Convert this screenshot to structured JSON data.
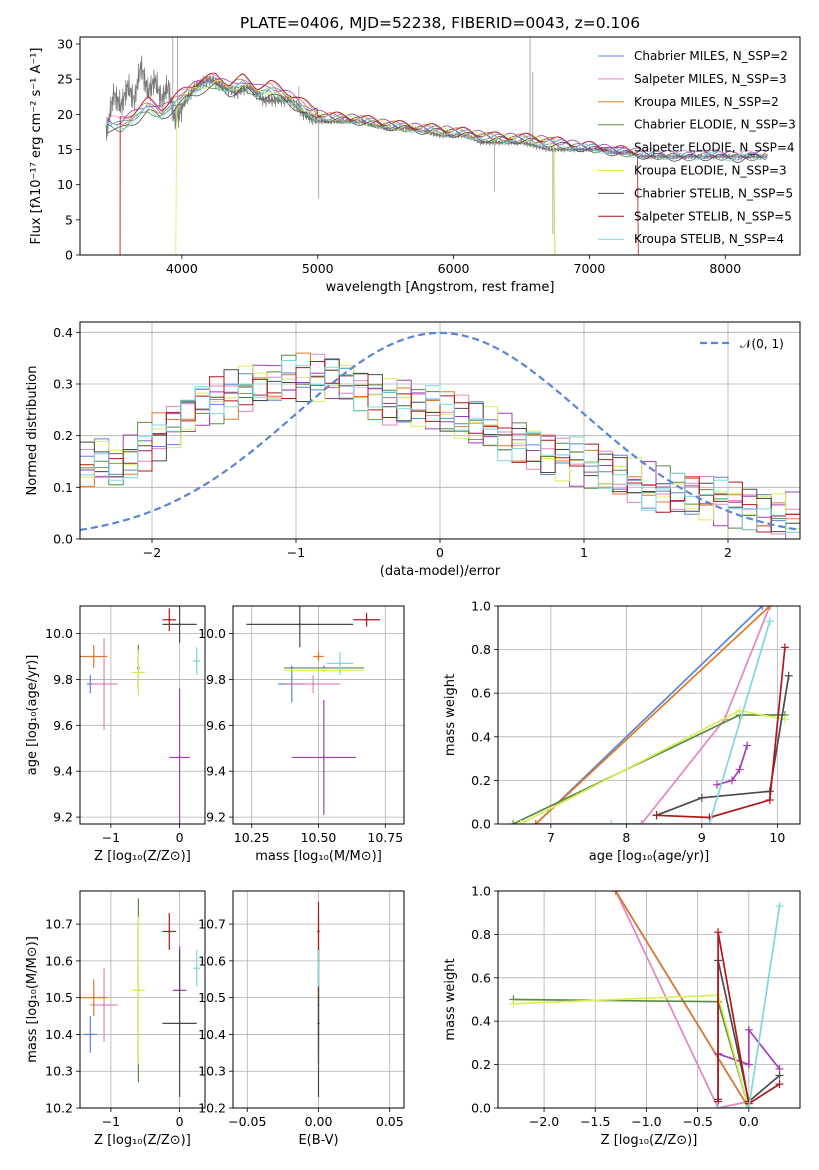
{
  "palette": {
    "chab_miles": "#5b86d6",
    "salp_miles": "#e386c2",
    "krou_miles": "#e07a2a",
    "chab_elodie": "#5a8a45",
    "salp_elodie": "#a23fb2",
    "krou_elodie": "#d7ef59",
    "chab_stelib": "#4a4a4a",
    "salp_stelib": "#b0181c",
    "krou_stelib": "#7fd8de",
    "observed": "#777777",
    "gaussian": "#5b86d6",
    "grid": "#b0b0b0"
  },
  "chart_data": [
    {
      "id": "spectrum",
      "type": "line",
      "title": "PLATE=0406, MJD=52238, FIBERID=0043, z=0.106",
      "xlabel": "wavelength [Angstrom, rest frame]",
      "ylabel": "Flux [fλ10⁻¹⁷ erg cm⁻² s⁻¹ A⁻¹]",
      "xlim": [
        3250,
        8550
      ],
      "ylim": [
        0,
        31
      ],
      "xticks": [
        "4000",
        "5000",
        "6000",
        "7000",
        "8000"
      ],
      "yticks": [
        "0",
        "5",
        "10",
        "15",
        "20",
        "25",
        "30"
      ],
      "grid": false,
      "legend_position": "top-right",
      "legend": [
        "Chabrier MILES, N_SSP=2",
        "Salpeter MILES, N_SSP=3",
        "Kroupa MILES, N_SSP=2",
        "Chabrier ELODIE, N_SSP=3",
        "Salpeter ELODIE, N_SSP=4",
        "Kroupa ELODIE, N_SSP=3",
        "Chabrier STELIB, N_SSP=5",
        "Salpeter STELIB, N_SSP=5",
        "Kroupa STELIB, N_SSP=4"
      ],
      "model_continuum": {
        "x": [
          3450,
          3550,
          3650,
          3750,
          3850,
          3950,
          4050,
          4150,
          4250,
          4350,
          4450,
          4550,
          4650,
          4750,
          4850,
          4950,
          5100,
          5300,
          5500,
          5700,
          5900,
          6100,
          6300,
          6500,
          6700,
          6900,
          7100,
          7300,
          7500,
          7700,
          7900,
          8100,
          8300
        ],
        "y": [
          18.5,
          18.3,
          19.5,
          21.0,
          20.0,
          21.5,
          23.0,
          24.0,
          24.5,
          23.5,
          24.3,
          23.0,
          23.5,
          22.5,
          21.5,
          20.0,
          19.5,
          19.2,
          18.5,
          18.0,
          17.7,
          17.2,
          16.6,
          16.5,
          16.1,
          15.5,
          15.0,
          14.5,
          14.2,
          14.0,
          14.2,
          13.9,
          14.2
        ]
      },
      "model_cutoffs": [
        {
          "series": 7,
          "start": 3545,
          "end": 7360
        },
        {
          "series": 2,
          "start": 3545,
          "end": 6745
        },
        {
          "series": 5,
          "start": 3955,
          "end": 6745
        }
      ],
      "observed": {
        "x": [
          3450,
          3500,
          3550,
          3600,
          3650,
          3700,
          3750,
          3800,
          3850,
          3900,
          3950,
          4000,
          4100,
          4200,
          4300,
          4400,
          4500,
          4600,
          4700,
          4800,
          4900,
          5000,
          5100,
          5200,
          5300,
          5400,
          5500,
          5600,
          5700,
          5800,
          5900,
          6000,
          6100,
          6200,
          6300,
          6400,
          6500,
          6600,
          6700,
          6800,
          6900,
          7000,
          7100,
          7200,
          7300,
          7400,
          7500,
          7600,
          7700,
          7800,
          7900,
          8000,
          8100,
          8200,
          8300
        ],
        "y": [
          18,
          23,
          21,
          24,
          22,
          27,
          23,
          25,
          22,
          24,
          19,
          21,
          24,
          25,
          24,
          23,
          24,
          22,
          22,
          22,
          20,
          19,
          19,
          19,
          19,
          18.5,
          18,
          18,
          18,
          17.5,
          17,
          17,
          17,
          16,
          16,
          16,
          16,
          15.5,
          15,
          15,
          15,
          15,
          15,
          14.5,
          14.5,
          14,
          14,
          14,
          14,
          14,
          14,
          14,
          14,
          14,
          14
        ]
      }
    },
    {
      "id": "residuals",
      "type": "line",
      "xlabel": "(data-model)/error",
      "ylabel": "Normed distribution",
      "xlim": [
        -2.5,
        2.5
      ],
      "ylim": [
        0,
        0.42
      ],
      "xticks": [
        "−2",
        "−1",
        "0",
        "1",
        "2"
      ],
      "yticks": [
        "0.0",
        "0.1",
        "0.2",
        "0.3",
        "0.4"
      ],
      "grid": true,
      "legend_position": "top-right",
      "legend": [
        "𝒩(0, 1)"
      ],
      "reference_curve": {
        "mean": 0,
        "sigma": 1
      },
      "hist_x": [
        -2.5,
        -2.4,
        -2.3,
        -2.2,
        -2.1,
        -2.0,
        -1.9,
        -1.8,
        -1.7,
        -1.6,
        -1.5,
        -1.4,
        -1.3,
        -1.2,
        -1.1,
        -1.0,
        -0.9,
        -0.8,
        -0.7,
        -0.6,
        -0.5,
        -0.4,
        -0.3,
        -0.2,
        -0.1,
        0.0,
        0.1,
        0.2,
        0.3,
        0.4,
        0.5,
        0.6,
        0.7,
        0.8,
        0.9,
        1.0,
        1.1,
        1.2,
        1.3,
        1.4,
        1.5,
        1.6,
        1.7,
        1.8,
        1.9,
        2.0,
        2.1,
        2.2,
        2.3,
        2.4,
        2.5
      ],
      "hist_base": [
        0.14,
        0.15,
        0.14,
        0.16,
        0.18,
        0.2,
        0.22,
        0.24,
        0.26,
        0.27,
        0.28,
        0.29,
        0.3,
        0.3,
        0.31,
        0.31,
        0.31,
        0.31,
        0.3,
        0.29,
        0.28,
        0.27,
        0.27,
        0.26,
        0.25,
        0.24,
        0.23,
        0.22,
        0.21,
        0.2,
        0.19,
        0.18,
        0.17,
        0.16,
        0.15,
        0.14,
        0.13,
        0.12,
        0.11,
        0.1,
        0.095,
        0.09,
        0.085,
        0.08,
        0.075,
        0.07,
        0.06,
        0.055,
        0.05,
        0.045
      ]
    },
    {
      "id": "age_vs_z",
      "type": "scatter",
      "xlabel": "Z [log₁₀(Z/Z⊙)]",
      "ylabel": "age  [log₁₀(age/yr)]",
      "xlim": [
        -1.45,
        0.37
      ],
      "ylim": [
        9.17,
        10.12
      ],
      "xticks": [
        "−1",
        "0"
      ],
      "yticks": [
        "9.2",
        "9.4",
        "9.6",
        "9.8",
        "10.0"
      ],
      "grid": true,
      "points": [
        {
          "s": 0,
          "x": -1.3,
          "y": 9.78,
          "xe": 0.05,
          "ye": 0.04
        },
        {
          "s": 1,
          "x": -1.1,
          "y": 9.78,
          "xe": 0.2,
          "ye": 0.2
        },
        {
          "s": 2,
          "x": -1.25,
          "y": 9.9,
          "xe": 0.2,
          "ye": 0.05
        },
        {
          "s": 3,
          "x": -0.6,
          "y": 9.85,
          "xe": 0.02,
          "ye": 0.1
        },
        {
          "s": 4,
          "x": 0.0,
          "y": 9.46,
          "xe": 0.15,
          "ye": 0.3
        },
        {
          "s": 5,
          "x": -0.6,
          "y": 9.83,
          "xe": 0.1,
          "ye": 0.1
        },
        {
          "s": 6,
          "x": 0.0,
          "y": 10.04,
          "xe": 0.25,
          "ye": 0.08
        },
        {
          "s": 7,
          "x": -0.15,
          "y": 10.06,
          "xe": 0.1,
          "ye": 0.05
        },
        {
          "s": 8,
          "x": 0.25,
          "y": 9.88,
          "xe": 0.05,
          "ye": 0.06
        }
      ]
    },
    {
      "id": "age_vs_mass",
      "type": "scatter",
      "xlabel": "mass [log₁₀(M/M⊙)]",
      "ylabel": "",
      "xlim": [
        10.18,
        10.82
      ],
      "ylim": [
        9.17,
        10.12
      ],
      "xticks": [
        "10.25",
        "10.50",
        "10.75"
      ],
      "yticks": [
        "9.2",
        "9.4",
        "9.6",
        "9.8",
        "10.0"
      ],
      "grid": true,
      "points": [
        {
          "s": 0,
          "x": 10.4,
          "y": 9.78,
          "xe": 0.05,
          "ye": 0.08
        },
        {
          "s": 1,
          "x": 10.48,
          "y": 9.78,
          "xe": 0.1,
          "ye": 0.04
        },
        {
          "s": 2,
          "x": 10.5,
          "y": 9.9,
          "xe": 0.02,
          "ye": 0.02
        },
        {
          "s": 3,
          "x": 10.52,
          "y": 9.85,
          "xe": 0.15,
          "ye": 0.01
        },
        {
          "s": 4,
          "x": 10.52,
          "y": 9.46,
          "xe": 0.12,
          "ye": 0.25
        },
        {
          "s": 5,
          "x": 10.52,
          "y": 9.84,
          "xe": 0.15,
          "ye": 0.01
        },
        {
          "s": 6,
          "x": 10.43,
          "y": 10.04,
          "xe": 0.2,
          "ye": 0.1
        },
        {
          "s": 7,
          "x": 10.68,
          "y": 10.06,
          "xe": 0.05,
          "ye": 0.03
        },
        {
          "s": 8,
          "x": 10.58,
          "y": 9.87,
          "xe": 0.05,
          "ye": 0.05
        }
      ]
    },
    {
      "id": "mass_weight_vs_age",
      "type": "line",
      "xlabel": "age  [log₁₀(age/yr)]",
      "ylabel": "mass weight",
      "xlim": [
        6.3,
        10.3
      ],
      "ylim": [
        0,
        1
      ],
      "xticks": [
        "7",
        "8",
        "9",
        "10"
      ],
      "yticks": [
        "0.0",
        "0.2",
        "0.4",
        "0.6",
        "0.8",
        "1.0"
      ],
      "grid": true,
      "lines": [
        {
          "s": 0,
          "x": [
            6.8,
            9.8
          ],
          "y": [
            0,
            1.0
          ]
        },
        {
          "s": 1,
          "x": [
            6.8,
            8.2,
            9.3,
            9.9
          ],
          "y": [
            0,
            0.0,
            0.48,
            1.0
          ]
        },
        {
          "s": 2,
          "x": [
            6.8,
            9.9
          ],
          "y": [
            0,
            1.0
          ]
        },
        {
          "s": 3,
          "x": [
            6.5,
            9.5,
            10.1
          ],
          "y": [
            0,
            0.5,
            0.5
          ]
        },
        {
          "s": 4,
          "x": [
            9.2,
            9.4,
            9.5,
            9.6
          ],
          "y": [
            0.18,
            0.2,
            0.25,
            0.36
          ]
        },
        {
          "s": 5,
          "x": [
            6.6,
            9.5,
            10.1
          ],
          "y": [
            0,
            0.52,
            0.48
          ]
        },
        {
          "s": 6,
          "x": [
            8.4,
            9.0,
            9.9,
            10.15
          ],
          "y": [
            0.04,
            0.12,
            0.15,
            0.68
          ]
        },
        {
          "s": 7,
          "x": [
            8.4,
            9.1,
            9.9,
            10.1
          ],
          "y": [
            0.04,
            0.03,
            0.11,
            0.81
          ]
        },
        {
          "s": 8,
          "x": [
            7.8,
            9.1,
            9.9
          ],
          "y": [
            0,
            0.0,
            0.93
          ]
        }
      ]
    },
    {
      "id": "mass_vs_z",
      "type": "scatter",
      "xlabel": "Z [log₁₀(Z/Z⊙)]",
      "ylabel": "mass [log₁₀(M/M⊙)]",
      "xlim": [
        -1.45,
        0.37
      ],
      "ylim": [
        10.2,
        10.79
      ],
      "xticks": [
        "−1",
        "0"
      ],
      "yticks": [
        "10.2",
        "10.3",
        "10.4",
        "10.5",
        "10.6",
        "10.7"
      ],
      "grid": true,
      "points": [
        {
          "s": 0,
          "x": -1.3,
          "y": 10.4,
          "xe": 0.1,
          "ye": 0.05
        },
        {
          "s": 1,
          "x": -1.1,
          "y": 10.48,
          "xe": 0.2,
          "ye": 0.1
        },
        {
          "s": 2,
          "x": -1.25,
          "y": 10.5,
          "xe": 0.2,
          "ye": 0.05
        },
        {
          "s": 3,
          "x": -0.6,
          "y": 10.52,
          "xe": 0.02,
          "ye": 0.25
        },
        {
          "s": 4,
          "x": 0.0,
          "y": 10.52,
          "xe": 0.1,
          "ye": 0.12
        },
        {
          "s": 5,
          "x": -0.6,
          "y": 10.52,
          "xe": 0.1,
          "ye": 0.2
        },
        {
          "s": 6,
          "x": 0.0,
          "y": 10.43,
          "xe": 0.25,
          "ye": 0.2
        },
        {
          "s": 7,
          "x": -0.15,
          "y": 10.68,
          "xe": 0.1,
          "ye": 0.05
        },
        {
          "s": 8,
          "x": 0.25,
          "y": 10.58,
          "xe": 0.05,
          "ye": 0.05
        }
      ]
    },
    {
      "id": "mass_vs_ebv",
      "type": "scatter",
      "xlabel": "E(B-V)",
      "ylabel": "",
      "xlim": [
        -0.06,
        0.06
      ],
      "ylim": [
        10.2,
        10.79
      ],
      "xticks": [
        "−0.05",
        "0.00",
        "0.05"
      ],
      "yticks": [
        "10.2",
        "10.3",
        "10.4",
        "10.5",
        "10.6",
        "10.7"
      ],
      "grid": true,
      "points": [
        {
          "s": 0,
          "x": 0,
          "y": 10.4,
          "xe": 0,
          "ye": 0.05
        },
        {
          "s": 1,
          "x": 0,
          "y": 10.48,
          "xe": 0,
          "ye": 0.05
        },
        {
          "s": 2,
          "x": 0,
          "y": 10.5,
          "xe": 0,
          "ye": 0.02
        },
        {
          "s": 3,
          "x": 0,
          "y": 10.52,
          "xe": 0,
          "ye": 0.2
        },
        {
          "s": 4,
          "x": 0,
          "y": 10.52,
          "xe": 0,
          "ye": 0.12
        },
        {
          "s": 5,
          "x": 0,
          "y": 10.52,
          "xe": 0,
          "ye": 0.2
        },
        {
          "s": 6,
          "x": 0,
          "y": 10.43,
          "xe": 0,
          "ye": 0.2
        },
        {
          "s": 7,
          "x": 0,
          "y": 10.68,
          "xe": 0,
          "ye": 0.08
        },
        {
          "s": 8,
          "x": 0,
          "y": 10.58,
          "xe": 0,
          "ye": 0.05
        }
      ]
    },
    {
      "id": "mass_weight_vs_z",
      "type": "line",
      "xlabel": "Z [log₁₀(Z/Z⊙)]",
      "ylabel": "mass weight",
      "xlim": [
        -2.45,
        0.5
      ],
      "ylim": [
        0,
        1
      ],
      "xticks": [
        "−2.0",
        "−1.5",
        "−1.0",
        "−0.5",
        "0.0"
      ],
      "yticks": [
        "0.0",
        "0.2",
        "0.4",
        "0.6",
        "0.8",
        "1.0"
      ],
      "grid": true,
      "lines": [
        {
          "s": 0,
          "x": [
            -1.3,
            0.0
          ],
          "y": [
            1.0,
            0.0
          ]
        },
        {
          "s": 1,
          "x": [
            -1.3,
            -0.3,
            0.0
          ],
          "y": [
            1.0,
            0.0,
            0.03
          ]
        },
        {
          "s": 2,
          "x": [
            -1.3,
            0.0
          ],
          "y": [
            1.0,
            0.0
          ]
        },
        {
          "s": 3,
          "x": [
            -2.3,
            -0.3,
            0.0
          ],
          "y": [
            0.5,
            0.49,
            0.0
          ]
        },
        {
          "s": 4,
          "x": [
            -0.3,
            0.0,
            0.0,
            0.3
          ],
          "y": [
            0.25,
            0.2,
            0.36,
            0.18
          ]
        },
        {
          "s": 5,
          "x": [
            -2.3,
            -0.3,
            0.0
          ],
          "y": [
            0.48,
            0.52,
            0.0
          ]
        },
        {
          "s": 6,
          "x": [
            -0.3,
            -0.3,
            0.0,
            0.3
          ],
          "y": [
            0.04,
            0.68,
            0.03,
            0.15
          ]
        },
        {
          "s": 7,
          "x": [
            -0.3,
            -0.3,
            0.0,
            0.3
          ],
          "y": [
            0.03,
            0.81,
            0.02,
            0.11
          ]
        },
        {
          "s": 8,
          "x": [
            -0.3,
            0.0,
            0.3
          ],
          "y": [
            0.0,
            0.0,
            0.93
          ]
        }
      ]
    }
  ]
}
